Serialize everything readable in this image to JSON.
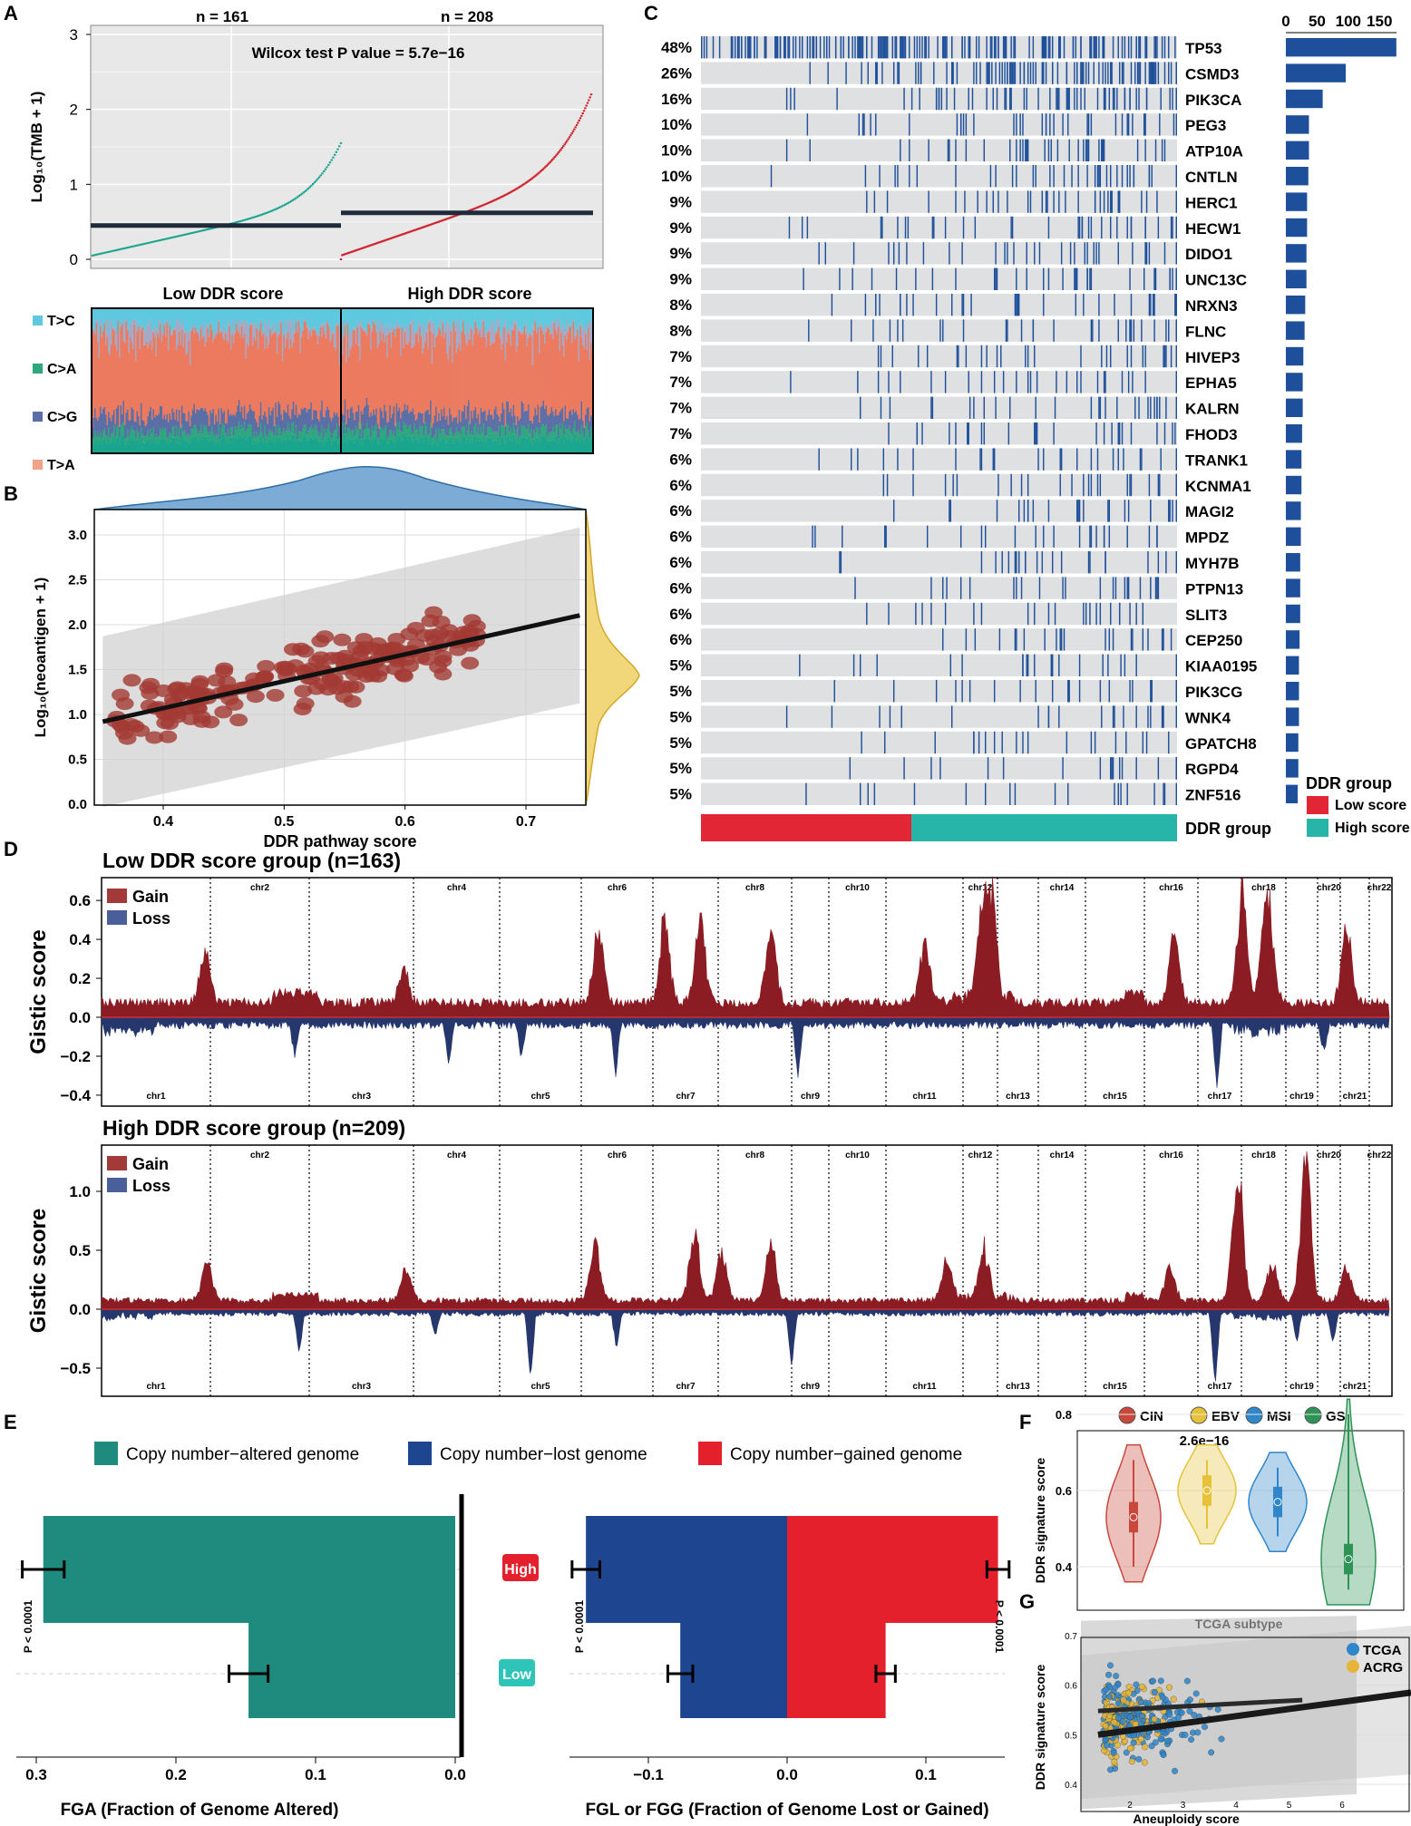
{
  "panels": {
    "A": "A",
    "B": "B",
    "C": "C",
    "D": "D",
    "E": "E",
    "F": "F",
    "G": "G"
  },
  "colors": {
    "low": "#e32636",
    "high": "#26b5a8",
    "gain": "#8b1c24",
    "loss": "#1f3b77",
    "teal": "#1f8a7e",
    "navy": "#1d4590",
    "red": "#e3202c",
    "oncobar": "#1d4f9a",
    "tmb_low": "#1aa58f",
    "tmb_high": "#d1232e",
    "cin": "#c9473b",
    "ebv": "#e5c23a",
    "msi": "#2f86c9",
    "gs": "#2e9456",
    "tcga": "#2f86c9",
    "acrg": "#e5b53a"
  },
  "panelA": {
    "n_low": "n = 161",
    "n_high": "n = 208",
    "test": "Wilcox test P value = 5.7e−16",
    "ylabel": "Log₁₀(TMB + 1)",
    "yticks": [
      "0",
      "1",
      "2",
      "3"
    ],
    "group_low": "Low DDR score",
    "group_high": "High DDR score",
    "median_low": 0.45,
    "median_high": 0.62,
    "legend": [
      {
        "label": "T>C",
        "color": "#5ec9de"
      },
      {
        "label": "C>A",
        "color": "#2fa77f"
      },
      {
        "label": "C>G",
        "color": "#5b6fa6"
      },
      {
        "label": "T>A",
        "color": "#f3a28a"
      }
    ]
  },
  "panelB": {
    "xlabel": "DDR pathway score",
    "ylabel": "Log₁₀(neoantigen + 1)",
    "xticks": [
      "0.4",
      "0.5",
      "0.6",
      "0.7"
    ],
    "yticks": [
      "0.0",
      "0.5",
      "1.0",
      "1.5",
      "2.0",
      "2.5",
      "3.0"
    ],
    "fit": {
      "intercept": -0.13,
      "slope": 3.0
    }
  },
  "panelC": {
    "axis_ticks": [
      "0",
      "50",
      "100",
      "150"
    ],
    "genes": [
      {
        "gene": "TP53",
        "pct": "48%",
        "count": 177
      },
      {
        "gene": "CSMD3",
        "pct": "26%",
        "count": 96
      },
      {
        "gene": "PIK3CA",
        "pct": "16%",
        "count": 59
      },
      {
        "gene": "PEG3",
        "pct": "10%",
        "count": 37
      },
      {
        "gene": "ATP10A",
        "pct": "10%",
        "count": 37
      },
      {
        "gene": "CNTLN",
        "pct": "10%",
        "count": 36
      },
      {
        "gene": "HERC1",
        "pct": "9%",
        "count": 34
      },
      {
        "gene": "HECW1",
        "pct": "9%",
        "count": 34
      },
      {
        "gene": "DIDO1",
        "pct": "9%",
        "count": 33
      },
      {
        "gene": "UNC13C",
        "pct": "9%",
        "count": 33
      },
      {
        "gene": "NRXN3",
        "pct": "8%",
        "count": 31
      },
      {
        "gene": "FLNC",
        "pct": "8%",
        "count": 30
      },
      {
        "gene": "HIVEP3",
        "pct": "7%",
        "count": 28
      },
      {
        "gene": "EPHA5",
        "pct": "7%",
        "count": 27
      },
      {
        "gene": "KALRN",
        "pct": "7%",
        "count": 27
      },
      {
        "gene": "FHOD3",
        "pct": "7%",
        "count": 26
      },
      {
        "gene": "TRANK1",
        "pct": "6%",
        "count": 25
      },
      {
        "gene": "KCNMA1",
        "pct": "6%",
        "count": 25
      },
      {
        "gene": "MAGI2",
        "pct": "6%",
        "count": 24
      },
      {
        "gene": "MPDZ",
        "pct": "6%",
        "count": 24
      },
      {
        "gene": "MYH7B",
        "pct": "6%",
        "count": 23
      },
      {
        "gene": "PTPN13",
        "pct": "6%",
        "count": 23
      },
      {
        "gene": "SLIT3",
        "pct": "6%",
        "count": 23
      },
      {
        "gene": "CEP250",
        "pct": "6%",
        "count": 22
      },
      {
        "gene": "KIAA0195",
        "pct": "5%",
        "count": 21
      },
      {
        "gene": "PIK3CG",
        "pct": "5%",
        "count": 21
      },
      {
        "gene": "WNK4",
        "pct": "5%",
        "count": 21
      },
      {
        "gene": "GPATCH8",
        "pct": "5%",
        "count": 20
      },
      {
        "gene": "RGPD4",
        "pct": "5%",
        "count": 20
      },
      {
        "gene": "ZNF516",
        "pct": "5%",
        "count": 19
      }
    ],
    "group_row_label": "DDR group",
    "legend_title": "DDR group",
    "legend_low": "Low score",
    "legend_high": "High score"
  },
  "panelD": {
    "ylabel": "Gistic score",
    "gain": "Gain",
    "loss": "Loss",
    "low_title": "Low DDR score group (n=163)",
    "high_title": "High DDR score group (n=209)",
    "low_yticks": [
      "0.6",
      "0.4",
      "0.2",
      "0.0",
      "−0.2",
      "−0.4"
    ],
    "high_yticks": [
      "1.0",
      "0.5",
      "0.0",
      "−0.5"
    ],
    "chromosomes": [
      "chr1",
      "chr2",
      "chr3",
      "chr4",
      "chr5",
      "chr6",
      "chr7",
      "chr8",
      "chr9",
      "chr10",
      "chr11",
      "chr12",
      "chr13",
      "chr14",
      "chr15",
      "chr16",
      "chr17",
      "chr18",
      "chr19",
      "chr20",
      "chr21",
      "chr22"
    ]
  },
  "panelE": {
    "legend": [
      {
        "label": "Copy number−altered genome",
        "color": "#1f8a7e"
      },
      {
        "label": "Copy number−lost genome",
        "color": "#1d4590"
      },
      {
        "label": "Copy number−gained genome",
        "color": "#e3202c"
      }
    ],
    "left": {
      "xlabel": "FGA (Fraction of Genome Altered)",
      "xticks": [
        "0.3",
        "0.2",
        "0.1",
        "0.0"
      ],
      "high": 0.295,
      "high_err": 0.015,
      "low": 0.148,
      "low_err": 0.014,
      "p": "P < 0.0001"
    },
    "right": {
      "xlabel": "FGL or FGG (Fraction of Genome Lost or Gained)",
      "xticks": [
        "−0.1",
        "0.0",
        "0.1"
      ],
      "lost_high": -0.145,
      "lost_high_err": 0.01,
      "gain_high": 0.152,
      "gain_high_err": 0.008,
      "lost_low": -0.077,
      "lost_low_err": 0.009,
      "gain_low": 0.071,
      "gain_low_err": 0.007,
      "p_left": "P < 0.0001",
      "p_right": "P < 0.0001"
    },
    "high_label": "High",
    "low_label": "Low"
  },
  "panelF": {
    "legend": [
      "CIN",
      "EBV",
      "MSI",
      "GS"
    ],
    "pval": "2.6e−16",
    "ylabel": "DDR signature score",
    "xlabel": "TCGA subtype",
    "yticks": [
      "0.4",
      "0.6",
      "0.8"
    ],
    "medians": [
      0.53,
      0.6,
      0.57,
      0.42
    ]
  },
  "panelG": {
    "legend": [
      "TCGA",
      "ACRG"
    ],
    "ylabel": "DDR signature score",
    "xlabel": "Aneuploidy score",
    "xticks": [
      "2",
      "3",
      "4",
      "5",
      "6"
    ],
    "yticks": [
      "0.4",
      "0.5",
      "0.6",
      "0.7"
    ]
  }
}
